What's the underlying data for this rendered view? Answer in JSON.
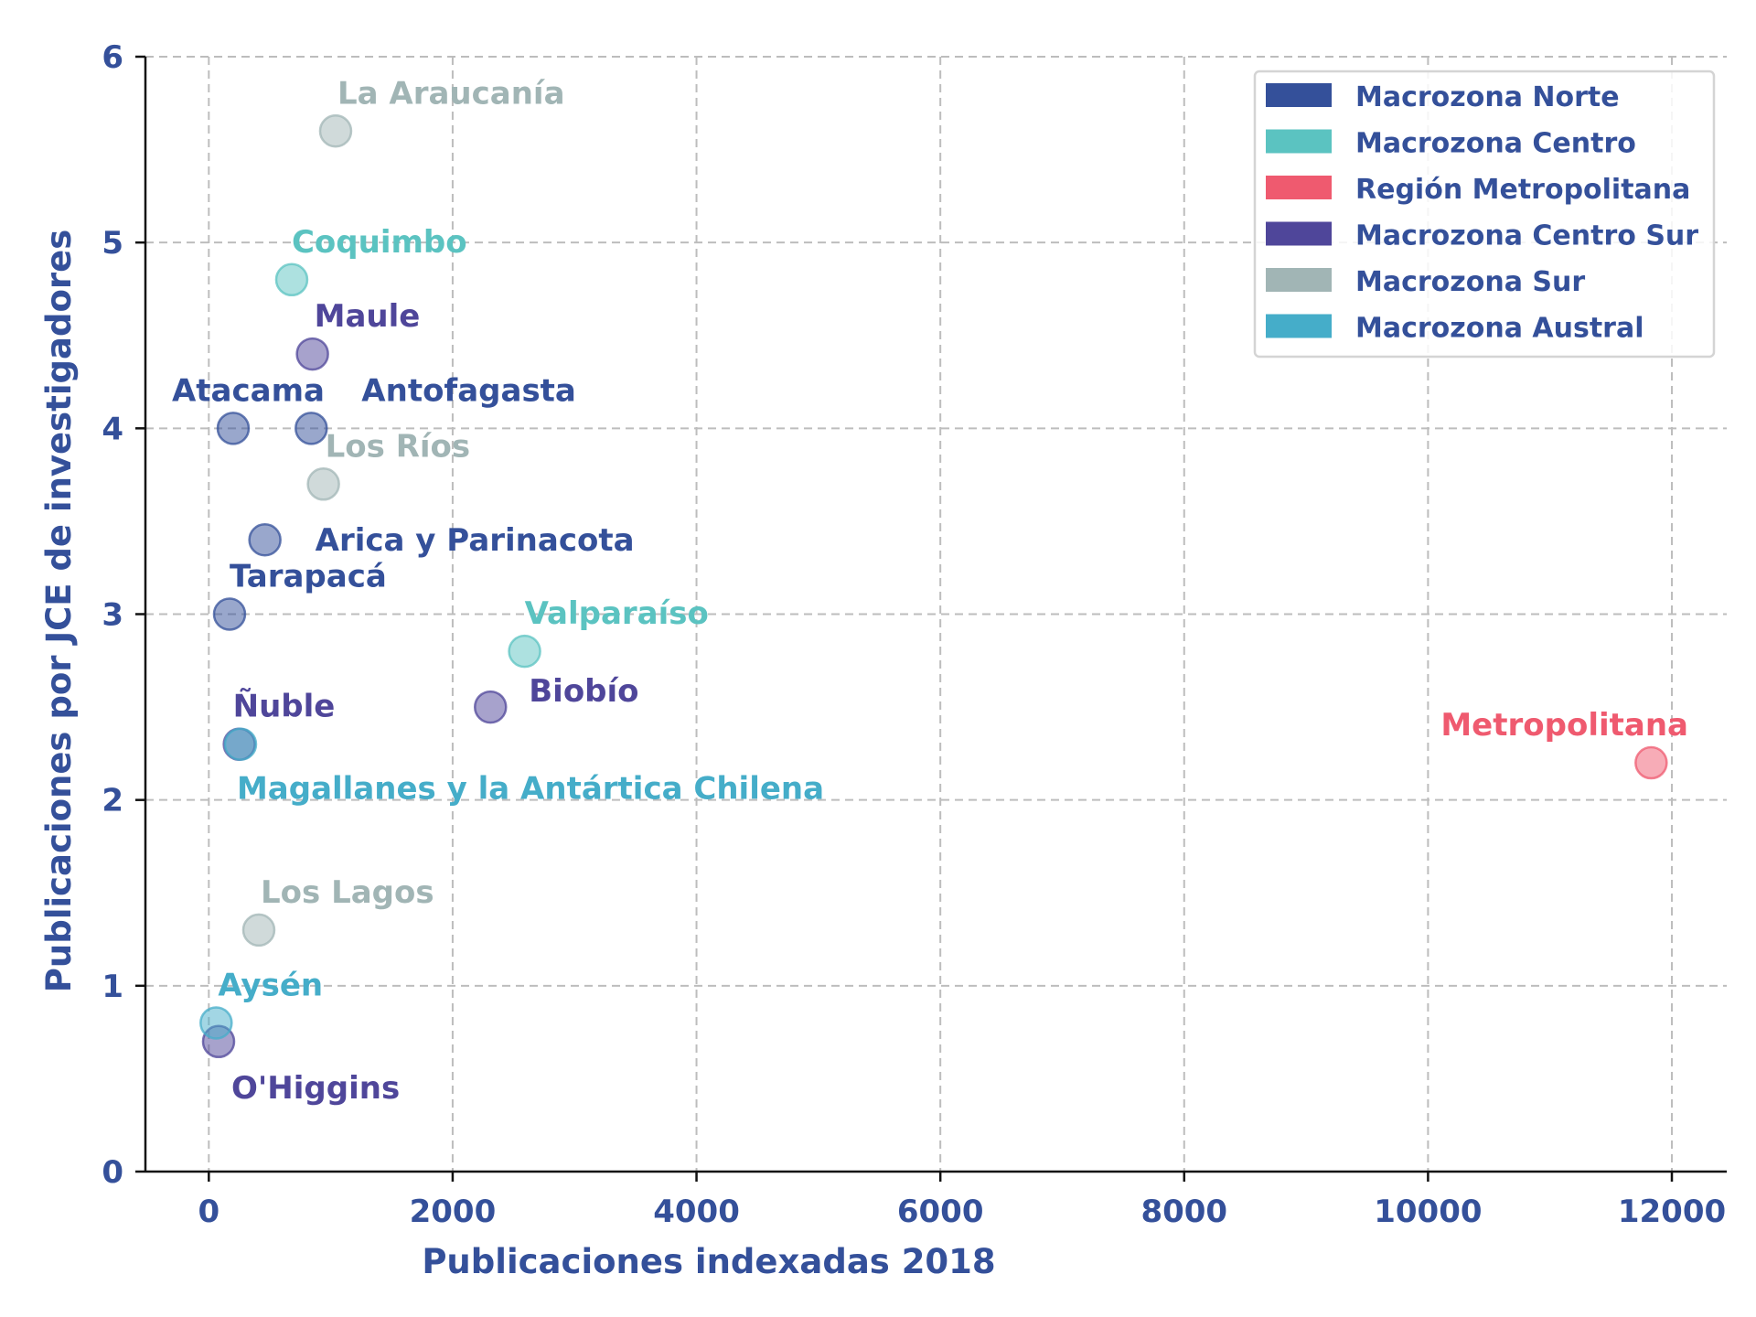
{
  "chart_data": {
    "type": "scatter",
    "title": "",
    "xlabel": "Publicaciones indexadas 2018",
    "ylabel": "Publicaciones por JCE de investigadores",
    "xlim": [
      -520,
      12450
    ],
    "ylim": [
      0,
      6
    ],
    "xticks": [
      0,
      2000,
      4000,
      6000,
      8000,
      10000,
      12000
    ],
    "yticks": [
      0,
      1,
      2,
      3,
      4,
      5,
      6
    ],
    "grid": true,
    "legend_position": "top-right",
    "series": [
      {
        "name": "Macrozona Norte",
        "color": "#34509a",
        "points": [
          {
            "label": "Arica y Parinacota",
            "x": 460,
            "y": 3.4
          },
          {
            "label": "Tarapacá",
            "x": 170,
            "y": 3.0
          },
          {
            "label": "Antofagasta",
            "x": 840,
            "y": 4.0
          },
          {
            "label": "Atacama",
            "x": 200,
            "y": 4.0
          }
        ]
      },
      {
        "name": "Macrozona Centro",
        "color": "#5bc3c1",
        "points": [
          {
            "label": "Coquimbo",
            "x": 680,
            "y": 4.8
          },
          {
            "label": "Valparaíso",
            "x": 2590,
            "y": 2.8
          }
        ]
      },
      {
        "name": "Región Metropolitana",
        "color": "#ef5a6f",
        "points": [
          {
            "label": "Metropolitana",
            "x": 11830,
            "y": 2.2
          }
        ]
      },
      {
        "name": "Macrozona Centro Sur",
        "color": "#4f469a",
        "points": [
          {
            "label": "O'Higgins",
            "x": 80,
            "y": 0.7
          },
          {
            "label": "Maule",
            "x": 850,
            "y": 4.4
          },
          {
            "label": "Ñuble",
            "x": 250,
            "y": 2.3
          },
          {
            "label": "Biobío",
            "x": 2310,
            "y": 2.5
          }
        ]
      },
      {
        "name": "Macrozona Sur",
        "color": "#a1b5b5",
        "points": [
          {
            "label": "La Araucanía",
            "x": 1040,
            "y": 5.6
          },
          {
            "label": "Los Ríos",
            "x": 940,
            "y": 3.7
          },
          {
            "label": "Los Lagos",
            "x": 410,
            "y": 1.3
          }
        ]
      },
      {
        "name": "Macrozona Austral",
        "color": "#45adc9",
        "points": [
          {
            "label": "Aysén",
            "x": 60,
            "y": 0.8
          },
          {
            "label": "Magallanes y la Antártica Chilena",
            "x": 260,
            "y": 2.3
          }
        ]
      }
    ]
  }
}
